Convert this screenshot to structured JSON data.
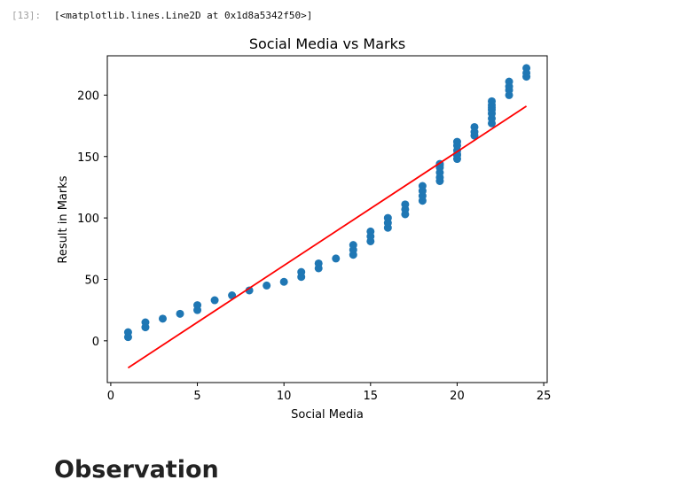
{
  "cell": {
    "prompt": "[13]:",
    "output": "[<matplotlib.lines.Line2D at 0x1d8a5342f50>]"
  },
  "heading": "Observation",
  "colors": {
    "scatter": "#1f77b4",
    "line": "#ff0000"
  },
  "chart_data": {
    "type": "scatter",
    "title": "Social Media vs Marks",
    "xlabel": "Social Media",
    "ylabel": "Result in Marks",
    "xlim": [
      -0.2,
      25.2
    ],
    "ylim": [
      -34,
      232
    ],
    "xticks": [
      0,
      5,
      10,
      15,
      20,
      25
    ],
    "yticks": [
      0,
      50,
      100,
      150,
      200
    ],
    "grid": false,
    "legend": "none",
    "series": [
      {
        "type": "scatter",
        "x": [
          1,
          1,
          2,
          2,
          3,
          4,
          5,
          5,
          6,
          7,
          8,
          9,
          10,
          11,
          11,
          12,
          12,
          13,
          14,
          14,
          14,
          15,
          15,
          15,
          16,
          16,
          16,
          17,
          17,
          17,
          18,
          18,
          18,
          18,
          19,
          19,
          19,
          19,
          19,
          19,
          20,
          20,
          20,
          20,
          20,
          20,
          21,
          21,
          21,
          22,
          22,
          22,
          22,
          22,
          22,
          22,
          23,
          23,
          23,
          23,
          24,
          24,
          24
        ],
        "y": [
          3,
          7,
          11,
          15,
          18,
          22,
          25,
          29,
          33,
          37,
          41,
          45,
          48,
          52,
          56,
          59,
          63,
          67,
          70,
          74,
          78,
          81,
          85,
          89,
          92,
          96,
          100,
          103,
          107,
          111,
          114,
          118,
          122,
          126,
          130,
          133,
          137,
          141,
          144,
          143,
          148,
          152,
          155,
          159,
          162,
          151,
          167,
          170,
          174,
          177,
          181,
          185,
          188,
          192,
          195,
          190,
          200,
          204,
          207,
          211,
          215,
          218,
          222
        ]
      },
      {
        "type": "line",
        "x": [
          1,
          24
        ],
        "y": [
          -22,
          191
        ]
      }
    ]
  }
}
